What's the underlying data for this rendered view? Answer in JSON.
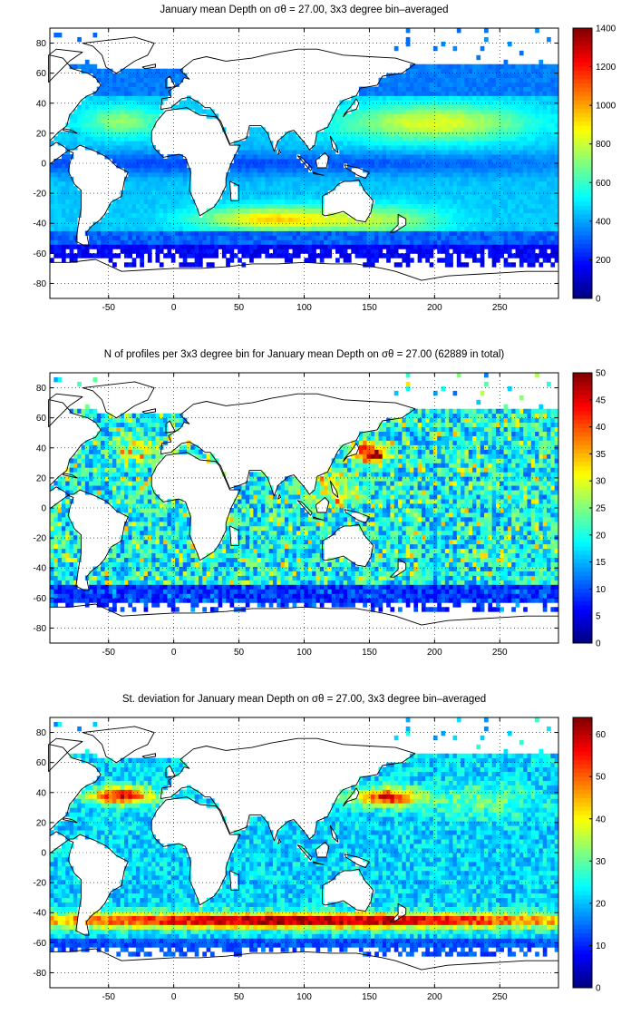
{
  "charts": [
    {
      "title": "January mean Depth on σθ = 27.00, 3x3 degree bin–averaged",
      "xticks": [
        "-50",
        "0",
        "50",
        "100",
        "150",
        "200",
        "250"
      ],
      "yticks": [
        "80",
        "60",
        "40",
        "20",
        "0",
        "-20",
        "-40",
        "-60",
        "-80"
      ],
      "cbticks": [
        "1400",
        "1200",
        "1000",
        "800",
        "600",
        "400",
        "200",
        "0"
      ]
    },
    {
      "title": "N of profiles per 3x3 degree bin for January mean Depth on σθ = 27.00 (62889 in total)",
      "xticks": [
        "-50",
        "0",
        "50",
        "100",
        "150",
        "200",
        "250"
      ],
      "yticks": [
        "80",
        "60",
        "40",
        "20",
        "0",
        "-20",
        "-40",
        "-60",
        "-80"
      ],
      "cbticks": [
        "50",
        "45",
        "40",
        "35",
        "30",
        "25",
        "20",
        "15",
        "10",
        "5",
        "0"
      ]
    },
    {
      "title": "St. deviation for January mean Depth on σθ = 27.00, 3x3 degree bin–averaged",
      "xticks": [
        "-50",
        "0",
        "50",
        "100",
        "150",
        "200",
        "250"
      ],
      "yticks": [
        "80",
        "60",
        "40",
        "20",
        "0",
        "-20",
        "-40",
        "-60",
        "-80"
      ],
      "cbticks": [
        "60",
        "50",
        "40",
        "30",
        "20",
        "10",
        "0"
      ]
    }
  ],
  "chart_data": [
    {
      "type": "heatmap",
      "title": "January mean Depth on σθ = 27.00, 3x3 degree bin–averaged",
      "xlim": [
        -95,
        295
      ],
      "ylim": [
        -90,
        90
      ],
      "bin_size_deg": 3,
      "colormap": "jet",
      "clim": [
        0,
        1400
      ],
      "grid": true,
      "regional_values": [
        {
          "region": "Southern Ocean south of -55",
          "value": 150
        },
        {
          "region": "South Indian Ocean -30 to -45",
          "value": 950
        },
        {
          "region": "North Pacific subtropical gyre",
          "value": 750
        },
        {
          "region": "North Atlantic subtropical gyre",
          "value": 600
        },
        {
          "region": "Equatorial band",
          "value": 450
        }
      ]
    },
    {
      "type": "heatmap",
      "title": "N of profiles per 3x3 degree bin for January mean Depth on σθ = 27.00 (62889 in total)",
      "xlim": [
        -95,
        295
      ],
      "ylim": [
        -90,
        90
      ],
      "bin_size_deg": 3,
      "colormap": "jet",
      "clim": [
        0,
        50
      ],
      "grid": true,
      "total_profiles": 62889,
      "regional_values": [
        {
          "region": "Kuroshio region off Japan",
          "value": 50
        },
        {
          "region": "Open ocean typical",
          "value": 15
        },
        {
          "region": "Southern Ocean",
          "value": 8
        }
      ]
    },
    {
      "type": "heatmap",
      "title": "St. deviation for January mean Depth on σθ = 27.00, 3x3 degree bin–averaged",
      "xlim": [
        -95,
        295
      ],
      "ylim": [
        -90,
        90
      ],
      "bin_size_deg": 3,
      "colormap": "jet",
      "clim": [
        0,
        64
      ],
      "grid": true,
      "regional_values": [
        {
          "region": "Antarctic Circumpolar Current band -40 to -55",
          "value": 60
        },
        {
          "region": "Gulf Stream / Kuroshio extensions",
          "value": 60
        },
        {
          "region": "Subtropical gyres",
          "value": 22
        },
        {
          "region": "Equatorial band",
          "value": 18
        }
      ]
    }
  ]
}
